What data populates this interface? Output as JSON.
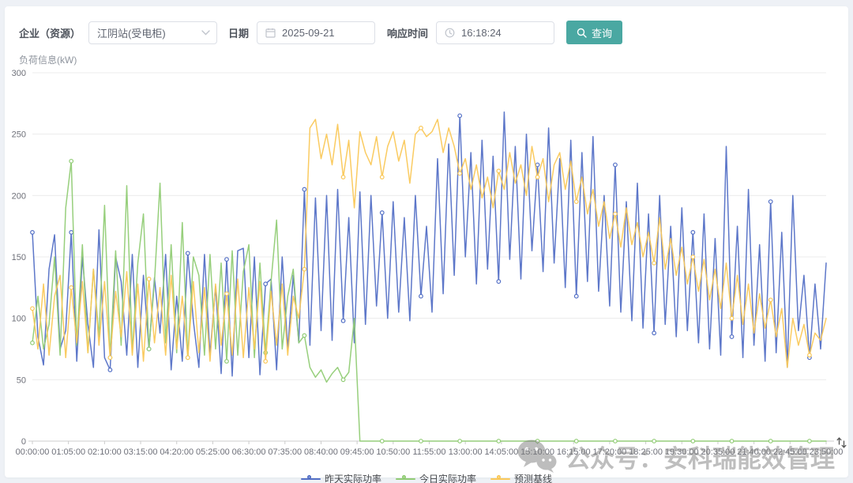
{
  "toolbar": {
    "enterprise_label": "企业（资源）",
    "enterprise_value": "江阴站(受电柜)",
    "date_label": "日期",
    "date_value": "2025-09-21",
    "response_time_label": "响应时间",
    "response_time_value": "16:18:24",
    "query_button": "查询"
  },
  "colors": {
    "accent": "#4aa8a2",
    "axis_text": "#6e7079",
    "grid_line": "#ececec"
  },
  "watermark": {
    "text": "公众号：安科瑞能效管理"
  },
  "chart_data": {
    "type": "line",
    "title": "",
    "xlabel": "",
    "ylabel": "负荷信息(kW)",
    "ylim": [
      0,
      300
    ],
    "y_ticks": [
      0,
      50,
      100,
      150,
      200,
      250,
      300
    ],
    "grid": true,
    "legend_position": "bottom",
    "x_tick_labels": [
      "00:00:00",
      "01:05:00",
      "02:10:00",
      "03:15:00",
      "04:20:00",
      "05:25:00",
      "06:30:00",
      "07:35:00",
      "08:40:00",
      "09:45:00",
      "10:50:00",
      "11:55:00",
      "13:00:00",
      "14:05:00",
      "15:10:00",
      "16:15:00",
      "17:20:00",
      "18:25:00",
      "19:30:00",
      "20:35:00",
      "21:40:00",
      "22:45:00",
      "23:50:00"
    ],
    "x_step_minutes": 10,
    "x_total_minutes": 1430,
    "series": [
      {
        "name": "昨天实际功率",
        "color": "#5470c6",
        "values": [
          170,
          85,
          62,
          140,
          168,
          75,
          90,
          170,
          65,
          150,
          95,
          60,
          172,
          68,
          58,
          150,
          130,
          70,
          152,
          60,
          135,
          75,
          133,
          88,
          152,
          58,
          118,
          65,
          153,
          98,
          60,
          152,
          70,
          126,
          55,
          148,
          53,
          155,
          157,
          68,
          150,
          54,
          128,
          132,
          58,
          150,
          75,
          135,
          80,
          205,
          78,
          198,
          90,
          200,
          82,
          205,
          98,
          182,
          80,
          203,
          95,
          200,
          110,
          186,
          100,
          195,
          105,
          182,
          98,
          200,
          118,
          175,
          105,
          230,
          120,
          242,
          135,
          265,
          150,
          235,
          128,
          245,
          140,
          232,
          130,
          268,
          148,
          240,
          132,
          250,
          155,
          225,
          138,
          255,
          145,
          230,
          125,
          245,
          118,
          235,
          130,
          248,
          122,
          200,
          110,
          225,
          105,
          195,
          98,
          210,
          92,
          185,
          88,
          200,
          95,
          175,
          85,
          190,
          90,
          170,
          80,
          185,
          75,
          165,
          70,
          240,
          85,
          175,
          68,
          205,
          78,
          160,
          65,
          195,
          72,
          170,
          60,
          200,
          90,
          135,
          68,
          128,
          75,
          145
        ]
      },
      {
        "name": "今日实际功率",
        "color": "#91cc75",
        "values": [
          80,
          118,
          75,
          95,
          150,
          70,
          190,
          228,
          78,
          160,
          72,
          140,
          85,
          192,
          68,
          155,
          78,
          208,
          72,
          145,
          185,
          75,
          130,
          210,
          80,
          160,
          72,
          178,
          68,
          150,
          135,
          70,
          152,
          75,
          145,
          65,
          155,
          70,
          138,
          160,
          68,
          145,
          72,
          130,
          180,
          75,
          118,
          140,
          80,
          86,
          60,
          52,
          58,
          48,
          55,
          60,
          50,
          56,
          100,
          0,
          0,
          0,
          0,
          0,
          0,
          0,
          0,
          0,
          0,
          0,
          0,
          0,
          0,
          0,
          0,
          0,
          0,
          0,
          0,
          0,
          0,
          0,
          0,
          0,
          0,
          0,
          0,
          0,
          0,
          0,
          0,
          0,
          0,
          0,
          0,
          0,
          0,
          0,
          0,
          0,
          0,
          0,
          0,
          0,
          0,
          0,
          0,
          0,
          0,
          0,
          0,
          0,
          0,
          0,
          0,
          0,
          0,
          0,
          0,
          0,
          0,
          0,
          0,
          0,
          0,
          0,
          0,
          0,
          0,
          0,
          0,
          0,
          0,
          0,
          0,
          0,
          0,
          0,
          0,
          0,
          0,
          0,
          0,
          0
        ]
      },
      {
        "name": "预测基线",
        "color": "#fac858",
        "values": [
          108,
          75,
          128,
          70,
          118,
          135,
          68,
          125,
          80,
          130,
          72,
          140,
          78,
          130,
          68,
          122,
          85,
          138,
          70,
          128,
          65,
          132,
          80,
          125,
          70,
          135,
          75,
          118,
          68,
          130,
          72,
          125,
          65,
          128,
          78,
          120,
          70,
          132,
          68,
          125,
          75,
          130,
          65,
          122,
          78,
          128,
          70,
          118,
          100,
          140,
          255,
          262,
          230,
          250,
          225,
          258,
          215,
          245,
          190,
          252,
          235,
          225,
          248,
          215,
          240,
          252,
          228,
          245,
          210,
          250,
          255,
          248,
          252,
          262,
          235,
          255,
          240,
          218,
          230,
          205,
          225,
          198,
          215,
          190,
          220,
          205,
          235,
          210,
          225,
          200,
          240,
          215,
          230,
          195,
          225,
          235,
          205,
          228,
          195,
          215,
          185,
          205,
          175,
          195,
          165,
          185,
          158,
          190,
          160,
          178,
          150,
          170,
          145,
          182,
          140,
          165,
          135,
          158,
          128,
          150,
          122,
          148,
          115,
          140,
          108,
          145,
          100,
          135,
          95,
          128,
          88,
          120,
          92,
          115,
          85,
          108,
          60,
          100,
          78,
          95,
          70,
          88,
          82,
          100
        ]
      }
    ]
  }
}
